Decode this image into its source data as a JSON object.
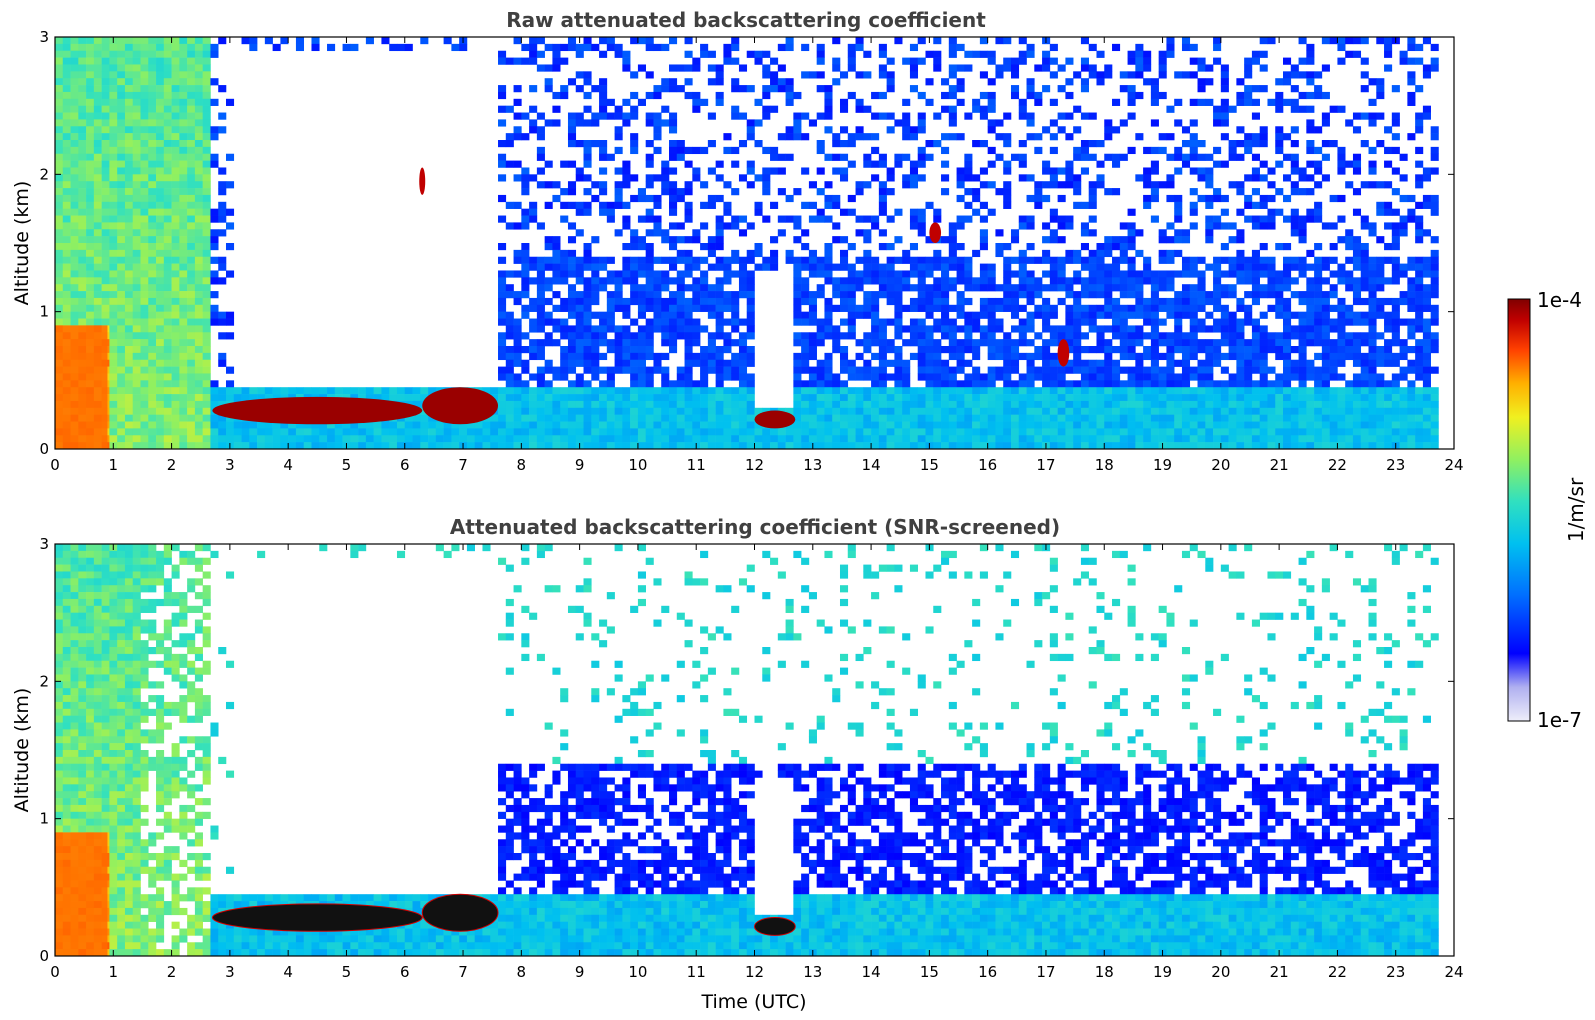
{
  "chart_data": [
    {
      "type": "heatmap",
      "title": "Raw attenuated backscattering coefficient",
      "xlabel": "",
      "ylabel": "Altitude (km)",
      "xlim": [
        0,
        24
      ],
      "ylim": [
        0,
        3
      ],
      "xticks": [
        "0",
        "1",
        "2",
        "3",
        "4",
        "5",
        "6",
        "7",
        "8",
        "9",
        "10",
        "11",
        "12",
        "13",
        "14",
        "15",
        "16",
        "17",
        "18",
        "19",
        "20",
        "21",
        "22",
        "23",
        "24"
      ],
      "yticks": [
        "0",
        "1",
        "2",
        "3"
      ],
      "features": [
        {
          "name": "aerosol-layer-early",
          "t_start": 0,
          "t_end": 2.7,
          "alt_bottom": 0,
          "alt_top": 3.0,
          "level": 0.62
        },
        {
          "name": "strong-surface-aerosol",
          "t_start": 0,
          "t_end": 0.9,
          "alt_bottom": 0,
          "alt_top": 0.9,
          "level": 0.85
        },
        {
          "name": "low-cloud-a",
          "t_start": 2.7,
          "t_end": 6.3,
          "alt_bottom": 0.18,
          "alt_top": 0.38,
          "level": 0.98
        },
        {
          "name": "low-cloud-b",
          "t_start": 6.3,
          "t_end": 7.6,
          "alt_bottom": 0.18,
          "alt_top": 0.45,
          "level": 0.98
        },
        {
          "name": "low-cloud-c",
          "t_start": 12.0,
          "t_end": 12.7,
          "alt_bottom": 0.15,
          "alt_top": 0.28,
          "level": 0.98
        },
        {
          "name": "cloud-patch-2km",
          "t_start": 6.25,
          "t_end": 6.35,
          "alt_bottom": 1.85,
          "alt_top": 2.05,
          "level": 0.95
        },
        {
          "name": "cloud-patch-1p5km",
          "t_start": 15.0,
          "t_end": 15.2,
          "alt_bottom": 1.5,
          "alt_top": 1.65,
          "level": 0.95
        },
        {
          "name": "cloud-patch-0p7km",
          "t_start": 17.2,
          "t_end": 17.4,
          "alt_bottom": 0.6,
          "alt_top": 0.8,
          "level": 0.95
        },
        {
          "name": "boundary-layer-late",
          "t_start": 7.6,
          "t_end": 23.7,
          "alt_bottom": 0,
          "alt_top": 0.5,
          "level": 0.45
        }
      ]
    },
    {
      "type": "heatmap",
      "title": "Attenuated backscattering coefficient (SNR-screened)",
      "xlabel": "Time (UTC)",
      "ylabel": "Altitude (km)",
      "xlim": [
        0,
        24
      ],
      "ylim": [
        0,
        3
      ],
      "xticks": [
        "0",
        "1",
        "2",
        "3",
        "4",
        "5",
        "6",
        "7",
        "8",
        "9",
        "10",
        "11",
        "12",
        "13",
        "14",
        "15",
        "16",
        "17",
        "18",
        "19",
        "20",
        "21",
        "22",
        "23",
        "24"
      ],
      "yticks": [
        "0",
        "1",
        "2",
        "3"
      ],
      "features": [
        {
          "name": "aerosol-layer-early",
          "t_start": 0,
          "t_end": 2.7,
          "alt_bottom": 0,
          "alt_top": 3.0,
          "level": 0.62
        },
        {
          "name": "strong-surface-aerosol",
          "t_start": 0,
          "t_end": 0.9,
          "alt_bottom": 0,
          "alt_top": 0.9,
          "level": 0.85
        },
        {
          "name": "low-cloud-a",
          "t_start": 2.7,
          "t_end": 6.3,
          "alt_bottom": 0.18,
          "alt_top": 0.38,
          "level": 1.0
        },
        {
          "name": "low-cloud-b",
          "t_start": 6.3,
          "t_end": 7.6,
          "alt_bottom": 0.18,
          "alt_top": 0.45,
          "level": 1.0
        },
        {
          "name": "low-cloud-c",
          "t_start": 12.0,
          "t_end": 12.7,
          "alt_bottom": 0.15,
          "alt_top": 0.28,
          "level": 1.0
        },
        {
          "name": "mid-layer",
          "t_start": 7.6,
          "t_end": 11.0,
          "alt_bottom": 0.4,
          "alt_top": 1.4,
          "level": 0.2
        },
        {
          "name": "boundary-layer-late",
          "t_start": 7.6,
          "t_end": 23.7,
          "alt_bottom": 0,
          "alt_top": 0.45,
          "level": 0.45
        }
      ]
    }
  ],
  "colorbar": {
    "label": "1/m/sr",
    "max_label": "1e-4",
    "min_label": "1e-7",
    "colors": [
      "#e8e8f8",
      "#c8c8f0",
      "#a0a0f0",
      "#0000ff",
      "#0060ff",
      "#00b0ff",
      "#20e0d0",
      "#70f070",
      "#d0f030",
      "#ffe000",
      "#ff9000",
      "#ff3000",
      "#c00000",
      "#800000"
    ]
  }
}
